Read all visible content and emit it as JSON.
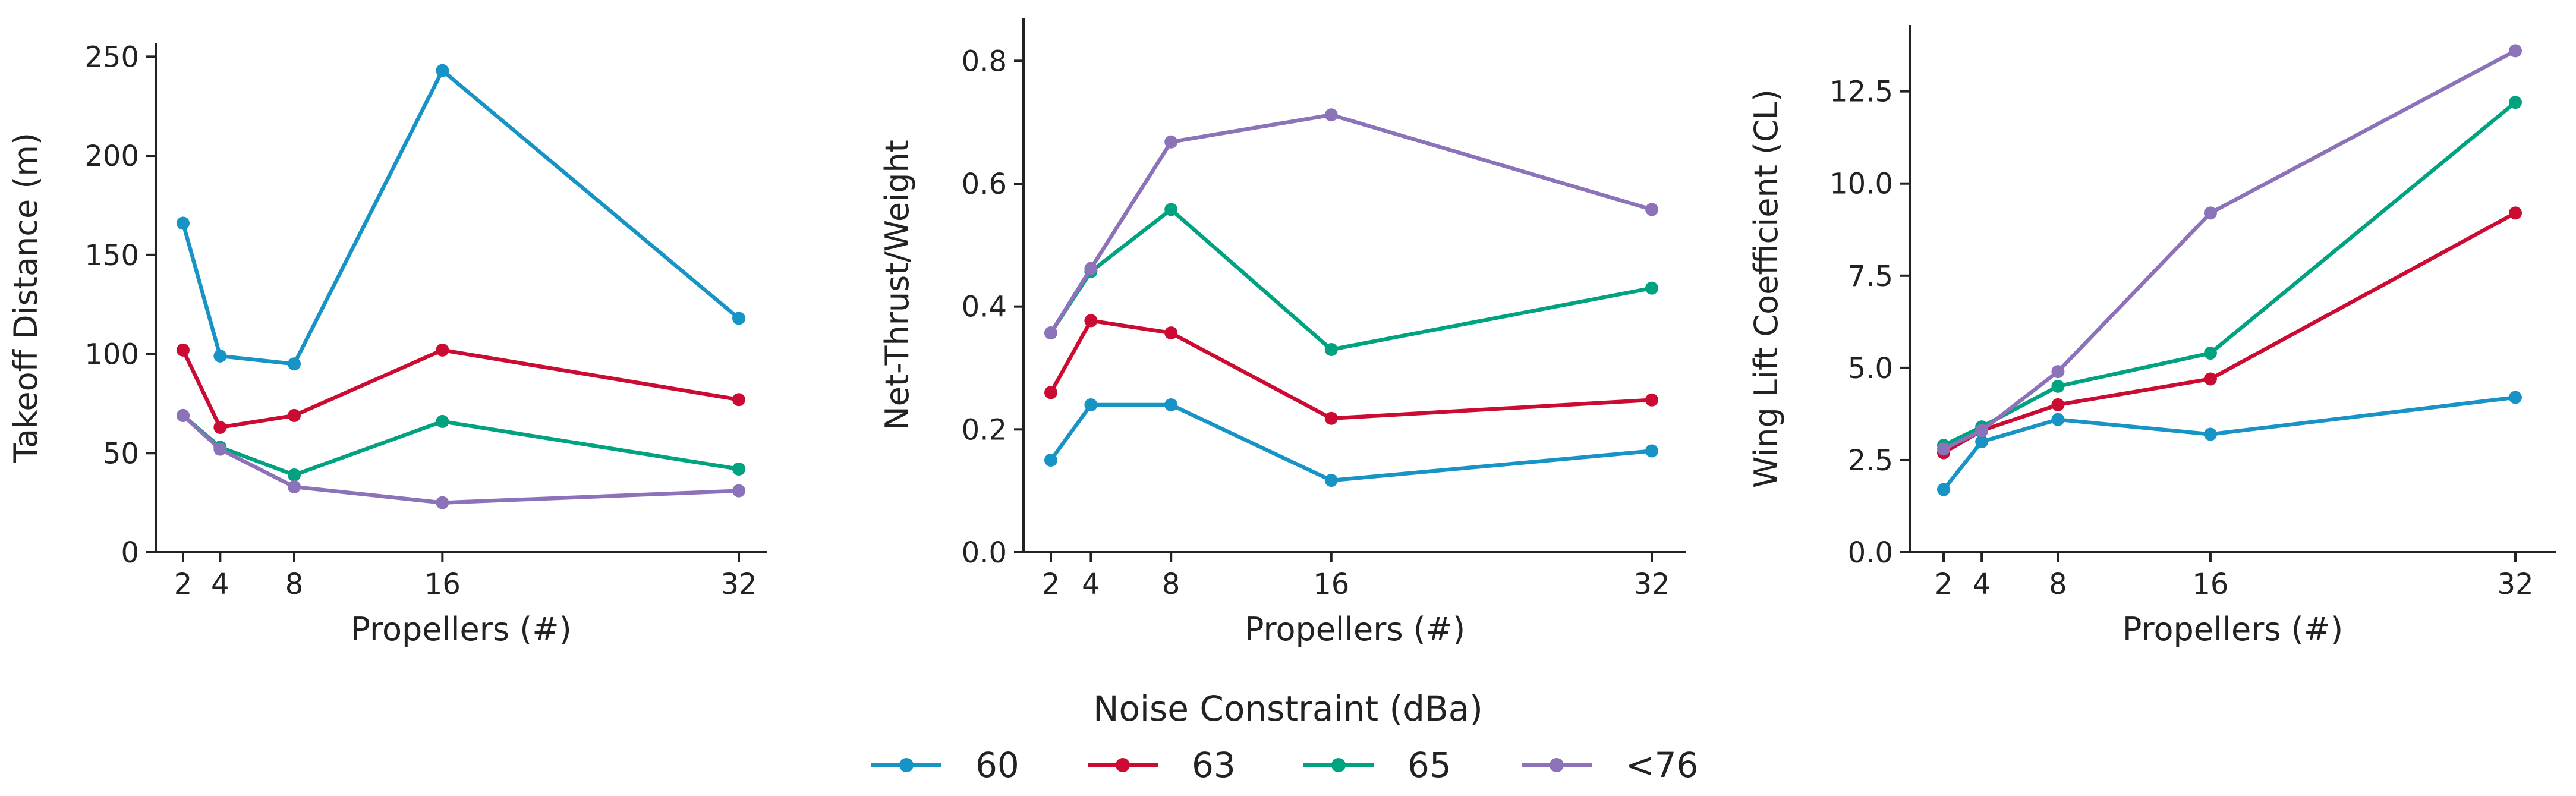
{
  "colors": {
    "60": "#1793c5",
    "63": "#cc0b32",
    "65": "#00a27f",
    "<76": "#8c72b8"
  },
  "legend": {
    "title": "Noise Constraint (dBa)",
    "entries": [
      "60",
      "63",
      "65",
      "<76"
    ]
  },
  "chart_data": [
    {
      "type": "line",
      "xlabel": "Propellers (#)",
      "ylabel": "Takeoff Distance (m)",
      "x": [
        2,
        4,
        8,
        16,
        32
      ],
      "xticks": [
        "2",
        "4",
        "8",
        "16",
        "32"
      ],
      "xlim": [
        0.7,
        33.6
      ],
      "ylim": [
        0,
        257
      ],
      "yticks": [
        "0",
        "50",
        "100",
        "150",
        "200",
        "250"
      ],
      "ytick_values": [
        0,
        50,
        100,
        150,
        200,
        250
      ],
      "series": [
        {
          "name": "60",
          "values": [
            166,
            99,
            95,
            243,
            118
          ]
        },
        {
          "name": "63",
          "values": [
            102,
            63,
            69,
            102,
            77
          ]
        },
        {
          "name": "65",
          "values": [
            69,
            53,
            39,
            66,
            42
          ]
        },
        {
          "name": "<76",
          "values": [
            69,
            52,
            33,
            25,
            31
          ]
        }
      ]
    },
    {
      "type": "line",
      "xlabel": "Propellers (#)",
      "ylabel": "Net-Thrust/Weight",
      "x": [
        2,
        4,
        8,
        16,
        32
      ],
      "xticks": [
        "2",
        "4",
        "8",
        "16",
        "32"
      ],
      "xlim": [
        0.7,
        33.6
      ],
      "ylim": [
        0,
        0.87
      ],
      "yticks": [
        "0.0",
        "0.2",
        "0.4",
        "0.6",
        "0.8"
      ],
      "ytick_values": [
        0,
        0.2,
        0.4,
        0.6,
        0.8
      ],
      "series": [
        {
          "name": "60",
          "values": [
            0.15,
            0.24,
            0.24,
            0.117,
            0.165
          ]
        },
        {
          "name": "63",
          "values": [
            0.26,
            0.377,
            0.357,
            0.218,
            0.248
          ]
        },
        {
          "name": "65",
          "values": [
            0.357,
            0.457,
            0.558,
            0.33,
            0.43
          ]
        },
        {
          "name": "<76",
          "values": [
            0.357,
            0.462,
            0.668,
            0.712,
            0.558
          ]
        }
      ]
    },
    {
      "type": "line",
      "xlabel": "Propellers (#)",
      "ylabel": "Wing Lift Coefficient (CL)",
      "x": [
        2,
        4,
        8,
        16,
        32
      ],
      "xticks": [
        "2",
        "4",
        "8",
        "16",
        "32"
      ],
      "xlim": [
        0.7,
        33.6
      ],
      "ylim": [
        0,
        14.3
      ],
      "yticks": [
        "0.0",
        "2.5",
        "5.0",
        "7.5",
        "10.0",
        "12.5"
      ],
      "ytick_values": [
        0,
        2.5,
        5,
        7.5,
        10,
        12.5
      ],
      "series": [
        {
          "name": "60",
          "values": [
            1.7,
            3.0,
            3.6,
            3.2,
            4.2
          ]
        },
        {
          "name": "63",
          "values": [
            2.7,
            3.3,
            4.0,
            4.7,
            9.2
          ]
        },
        {
          "name": "65",
          "values": [
            2.9,
            3.4,
            4.5,
            5.4,
            12.2
          ]
        },
        {
          "name": "<76",
          "values": [
            2.8,
            3.3,
            4.9,
            9.2,
            13.6
          ]
        }
      ]
    }
  ]
}
